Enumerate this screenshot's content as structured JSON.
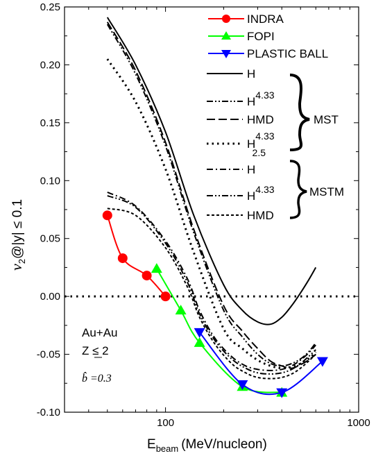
{
  "chart_data": {
    "type": "line",
    "xscale": "log",
    "xlim": [
      30,
      1000
    ],
    "ylim": [
      -0.1,
      0.25
    ],
    "xlabel": {
      "main": "E",
      "sub": "beam",
      "rest": "(MeV/nucleon)"
    },
    "ylabel": {
      "pre": "v",
      "sub": "2",
      "post": "@|y| ≤ 0.1"
    },
    "x_ticks": [
      100,
      1000
    ],
    "x_tick_labels": [
      "100",
      "1000"
    ],
    "y_ticks": [
      -0.1,
      -0.05,
      0.0,
      0.05,
      0.1,
      0.15,
      0.2,
      0.25
    ],
    "y_tick_labels": [
      "-0.10",
      "-0.05",
      "0.00",
      "0.05",
      "0.10",
      "0.15",
      "0.20",
      "0.25"
    ],
    "reference_line": {
      "y": 0.0,
      "style": "dotted"
    },
    "experimental": [
      {
        "name": "INDRA",
        "color": "#ff0000",
        "marker": "circle",
        "x": [
          50,
          60,
          80,
          100
        ],
        "y": [
          0.07,
          0.033,
          0.018,
          0.0
        ]
      },
      {
        "name": "FOPI",
        "color": "#00ff00",
        "marker": "triangle-up",
        "x": [
          90,
          120,
          150,
          250,
          400
        ],
        "y": [
          0.024,
          -0.012,
          -0.04,
          -0.078,
          -0.083
        ]
      },
      {
        "name": "PLASTIC BALL",
        "color": "#0000ff",
        "marker": "triangle-down",
        "x": [
          150,
          250,
          400,
          650
        ],
        "y": [
          -0.031,
          -0.076,
          -0.083,
          -0.056
        ]
      }
    ],
    "calculations": [
      {
        "name": "H",
        "group": "MST",
        "dash": "solid",
        "x": [
          50,
          70,
          100,
          140,
          200,
          250,
          300,
          350,
          400,
          450,
          500,
          550,
          600
        ],
        "y": [
          0.241,
          0.2,
          0.142,
          0.07,
          0.01,
          -0.012,
          -0.022,
          -0.024,
          -0.018,
          -0.008,
          0.003,
          0.014,
          0.025
        ]
      },
      {
        "name": "H4.33",
        "group": "MST",
        "dash": "dash-dot-dot",
        "x": [
          50,
          70,
          100,
          140,
          200,
          250,
          300,
          350,
          400,
          450,
          500,
          550,
          600
        ],
        "y": [
          0.235,
          0.192,
          0.13,
          0.055,
          -0.012,
          -0.035,
          -0.05,
          -0.058,
          -0.06,
          -0.058,
          -0.054,
          -0.048,
          -0.04
        ]
      },
      {
        "name": "HMD",
        "group": "MST",
        "dash": "dash",
        "x": [
          50,
          70,
          100,
          140,
          200,
          250,
          300,
          350,
          400,
          450,
          500,
          550,
          600
        ],
        "y": [
          0.237,
          0.195,
          0.133,
          0.058,
          -0.008,
          -0.03,
          -0.045,
          -0.056,
          -0.06,
          -0.062,
          -0.059,
          -0.055,
          -0.05
        ]
      },
      {
        "name": "H4.33 2.5",
        "group": "MST",
        "dash": "dot",
        "x": [
          50,
          70,
          100,
          140,
          200,
          250,
          300,
          350,
          400,
          450,
          500,
          550,
          600
        ],
        "y": [
          0.205,
          0.168,
          0.11,
          0.038,
          -0.028,
          -0.045,
          -0.055,
          -0.06,
          -0.062,
          -0.061,
          -0.058,
          -0.054,
          -0.048
        ]
      },
      {
        "name": "H",
        "group": "MSTM",
        "dash": "dash-dot",
        "x": [
          50,
          70,
          100,
          130,
          150,
          180,
          220,
          260,
          300,
          350,
          400,
          450,
          500,
          550,
          600
        ],
        "y": [
          0.09,
          0.078,
          0.048,
          0.015,
          -0.012,
          -0.036,
          -0.052,
          -0.06,
          -0.063,
          -0.064,
          -0.063,
          -0.06,
          -0.055,
          -0.049,
          -0.042
        ]
      },
      {
        "name": "H4.33",
        "group": "MSTM",
        "dash": "dash-dot-dot",
        "x": [
          50,
          70,
          100,
          130,
          150,
          180,
          220,
          260,
          300,
          350,
          400,
          450,
          500,
          550,
          600
        ],
        "y": [
          0.087,
          0.077,
          0.046,
          0.012,
          -0.015,
          -0.038,
          -0.054,
          -0.062,
          -0.066,
          -0.067,
          -0.066,
          -0.063,
          -0.058,
          -0.052,
          -0.046
        ]
      },
      {
        "name": "HMD",
        "group": "MSTM",
        "dash": "short-dash",
        "x": [
          50,
          70,
          100,
          130,
          150,
          180,
          220,
          260,
          300,
          350,
          400,
          450,
          500,
          550,
          600
        ],
        "y": [
          0.076,
          0.07,
          0.042,
          0.008,
          -0.018,
          -0.041,
          -0.058,
          -0.066,
          -0.07,
          -0.071,
          -0.07,
          -0.067,
          -0.062,
          -0.056,
          -0.05
        ]
      }
    ]
  },
  "legend": {
    "items": [
      {
        "label": "INDRA",
        "color": "#ff0000",
        "marker": "circle"
      },
      {
        "label": "FOPI",
        "color": "#00ff00",
        "marker": "triangle-up"
      },
      {
        "label": "PLASTIC BALL",
        "color": "#0000ff",
        "marker": "triangle-down"
      },
      {
        "label": "H",
        "dash": "solid"
      },
      {
        "label": "H",
        "sup": "4.33",
        "dash": "dash-dot-dot"
      },
      {
        "label": "HMD",
        "dash": "dash"
      },
      {
        "label": "H",
        "sup": "4.33",
        "sub": "2.5",
        "dash": "dot"
      },
      {
        "label": "H",
        "dash": "dash-dot"
      },
      {
        "label": "H",
        "sup": "4.33",
        "dash": "dash-dot-dot"
      },
      {
        "label": "HMD",
        "dash": "short-dash"
      }
    ],
    "group_labels": [
      "MST",
      "MSTM"
    ]
  },
  "annotation": {
    "system": "Au+Au",
    "z_cut": "Z ≤ 2",
    "b_hat": "b̂ =0.3"
  }
}
